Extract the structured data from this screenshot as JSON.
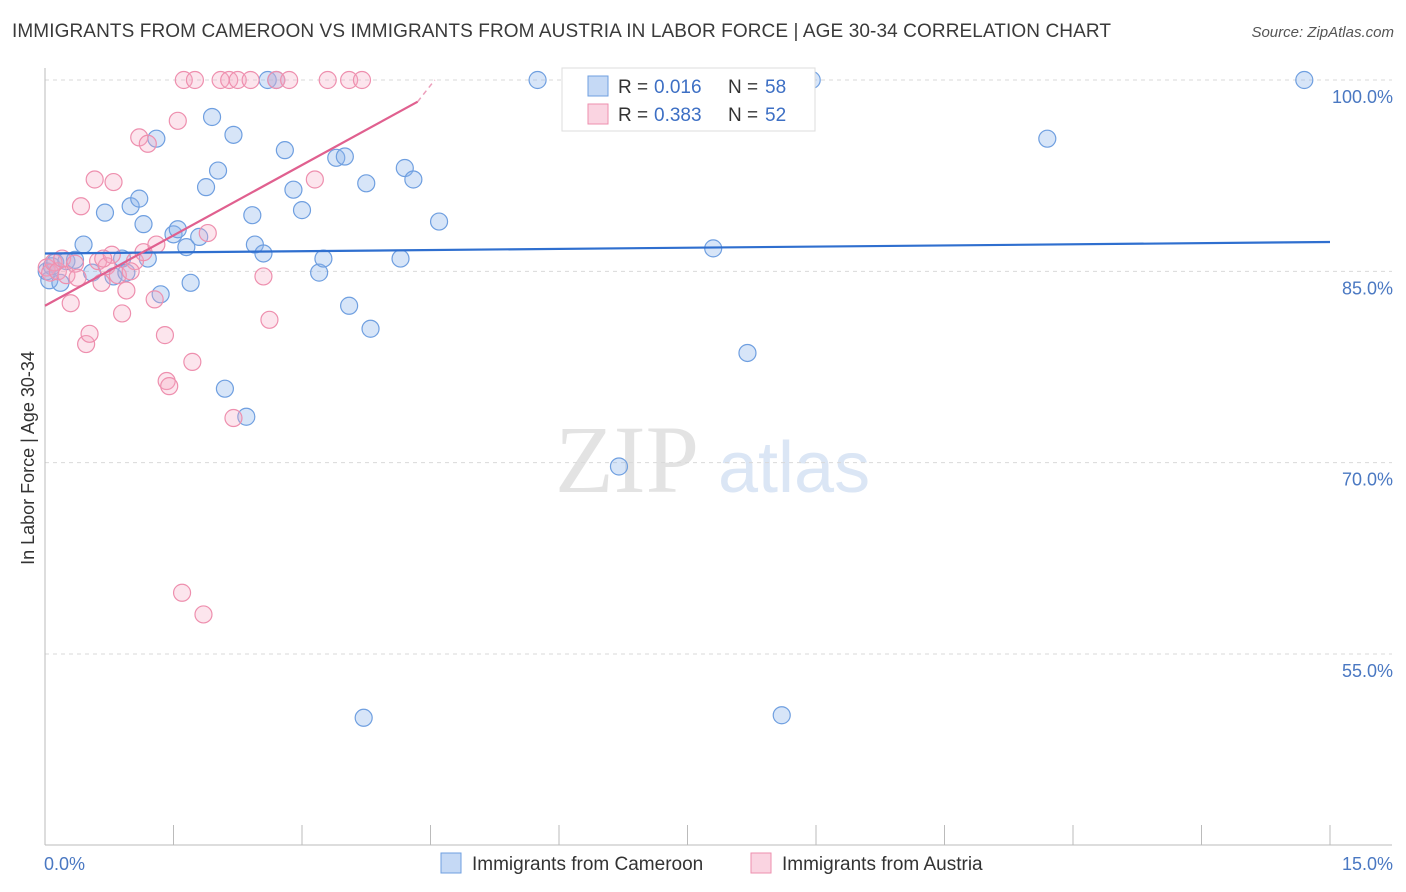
{
  "title": "IMMIGRANTS FROM CAMEROON VS IMMIGRANTS FROM AUSTRIA IN LABOR FORCE | AGE 30-34 CORRELATION CHART",
  "source": "Source: ZipAtlas.com",
  "watermark": {
    "zip": "ZIP",
    "atlas": "atlas"
  },
  "colors": {
    "blue": "#6f9fe0",
    "blue_fill": "rgba(140,180,235,0.35)",
    "blue_line": "#2f6fcf",
    "pink": "#ee8fae",
    "pink_fill": "rgba(245,170,195,0.30)",
    "pink_line": "#e0608f",
    "axis_label": "#4a78c2",
    "grid": "#d9d9d9"
  },
  "legend": {
    "r_label": "R =",
    "n_label": "N =",
    "rows": [
      {
        "series": "Immigrants from Cameroon",
        "r": "0.016",
        "n": "58",
        "color": "blue"
      },
      {
        "series": "Immigrants from Austria",
        "r": "0.383",
        "n": "52",
        "color": "pink"
      }
    ]
  },
  "chart_data": {
    "type": "scatter",
    "title": "IMMIGRANTS FROM CAMEROON VS IMMIGRANTS FROM AUSTRIA IN LABOR FORCE | AGE 30-34 CORRELATION CHART",
    "xlabel": "",
    "ylabel": "In Labor Force | Age 30-34",
    "xlim": [
      0,
      15
    ],
    "ylim": [
      40,
      101.5
    ],
    "x_tick_labels": [
      "0.0%",
      "15.0%"
    ],
    "y_ticks": [
      100,
      85,
      70,
      55
    ],
    "y_tick_labels": [
      "100.0%",
      "85.0%",
      "70.0%",
      "55.0%"
    ],
    "series": [
      {
        "name": "Immigrants from Cameroon",
        "color": "blue",
        "trend": {
          "x": [
            0,
            15
          ],
          "y": [
            86.4,
            87.3
          ]
        },
        "points": [
          [
            0.02,
            85.0
          ],
          [
            0.05,
            84.3
          ],
          [
            0.08,
            85.4
          ],
          [
            0.12,
            85.7
          ],
          [
            0.18,
            84.1
          ],
          [
            0.25,
            85.8
          ],
          [
            0.35,
            85.9
          ],
          [
            0.45,
            87.1
          ],
          [
            0.55,
            84.9
          ],
          [
            0.7,
            89.6
          ],
          [
            0.8,
            84.6
          ],
          [
            0.9,
            86.0
          ],
          [
            0.95,
            84.9
          ],
          [
            1.0,
            90.1
          ],
          [
            1.1,
            90.7
          ],
          [
            1.15,
            88.7
          ],
          [
            1.2,
            86.0
          ],
          [
            1.3,
            95.4
          ],
          [
            1.35,
            83.2
          ],
          [
            1.5,
            87.9
          ],
          [
            1.55,
            88.3
          ],
          [
            1.65,
            86.9
          ],
          [
            1.7,
            84.1
          ],
          [
            1.8,
            87.7
          ],
          [
            1.88,
            91.6
          ],
          [
            1.95,
            97.1
          ],
          [
            2.02,
            92.9
          ],
          [
            2.1,
            75.8
          ],
          [
            2.2,
            95.7
          ],
          [
            2.35,
            73.6
          ],
          [
            2.42,
            89.4
          ],
          [
            2.45,
            87.1
          ],
          [
            2.55,
            86.4
          ],
          [
            2.6,
            100.0
          ],
          [
            2.7,
            100.0
          ],
          [
            2.8,
            94.5
          ],
          [
            2.9,
            91.4
          ],
          [
            3.0,
            89.8
          ],
          [
            3.2,
            84.9
          ],
          [
            3.25,
            86.0
          ],
          [
            3.4,
            93.9
          ],
          [
            3.5,
            94.0
          ],
          [
            3.55,
            82.3
          ],
          [
            3.72,
            50.0
          ],
          [
            3.75,
            91.9
          ],
          [
            3.8,
            80.5
          ],
          [
            4.15,
            86.0
          ],
          [
            4.2,
            93.1
          ],
          [
            4.3,
            92.2
          ],
          [
            4.6,
            88.9
          ],
          [
            5.75,
            100.0
          ],
          [
            6.7,
            69.7
          ],
          [
            7.8,
            86.8
          ],
          [
            8.2,
            78.6
          ],
          [
            8.6,
            50.2
          ],
          [
            8.95,
            100.0
          ],
          [
            11.7,
            95.4
          ],
          [
            14.7,
            100.0
          ]
        ]
      },
      {
        "name": "Immigrants from Austria",
        "color": "pink",
        "trend": {
          "x": [
            0,
            4.35
          ],
          "y": [
            82.3,
            98.3
          ]
        },
        "trend_extension": {
          "x": [
            4.35,
            4.55
          ],
          "y": [
            98.3,
            100.0
          ]
        },
        "points": [
          [
            0.02,
            85.3
          ],
          [
            0.06,
            84.9
          ],
          [
            0.1,
            85.7
          ],
          [
            0.15,
            85.0
          ],
          [
            0.2,
            86.0
          ],
          [
            0.25,
            84.7
          ],
          [
            0.3,
            82.5
          ],
          [
            0.35,
            85.6
          ],
          [
            0.38,
            84.5
          ],
          [
            0.42,
            90.1
          ],
          [
            0.48,
            79.3
          ],
          [
            0.52,
            80.1
          ],
          [
            0.58,
            92.2
          ],
          [
            0.62,
            85.8
          ],
          [
            0.66,
            84.1
          ],
          [
            0.72,
            85.4
          ],
          [
            0.78,
            86.3
          ],
          [
            0.8,
            92.0
          ],
          [
            0.85,
            84.7
          ],
          [
            0.9,
            81.7
          ],
          [
            0.95,
            83.5
          ],
          [
            1.05,
            85.8
          ],
          [
            1.0,
            85.0
          ],
          [
            1.1,
            95.5
          ],
          [
            1.15,
            86.5
          ],
          [
            1.2,
            95.0
          ],
          [
            1.28,
            82.8
          ],
          [
            1.3,
            87.1
          ],
          [
            1.4,
            80.0
          ],
          [
            1.42,
            76.4
          ],
          [
            1.45,
            76.0
          ],
          [
            1.55,
            96.8
          ],
          [
            1.6,
            59.8
          ],
          [
            1.62,
            100.0
          ],
          [
            1.72,
            77.9
          ],
          [
            1.75,
            100.0
          ],
          [
            1.85,
            58.1
          ],
          [
            1.9,
            88.0
          ],
          [
            2.05,
            100.0
          ],
          [
            2.15,
            100.0
          ],
          [
            2.2,
            73.5
          ],
          [
            2.25,
            100.0
          ],
          [
            2.4,
            100.0
          ],
          [
            2.55,
            84.6
          ],
          [
            2.62,
            81.2
          ],
          [
            2.7,
            100.0
          ],
          [
            2.85,
            100.0
          ],
          [
            3.15,
            92.2
          ],
          [
            3.3,
            100.0
          ],
          [
            3.55,
            100.0
          ],
          [
            3.7,
            100.0
          ],
          [
            0.68,
            86.0
          ]
        ]
      }
    ]
  }
}
